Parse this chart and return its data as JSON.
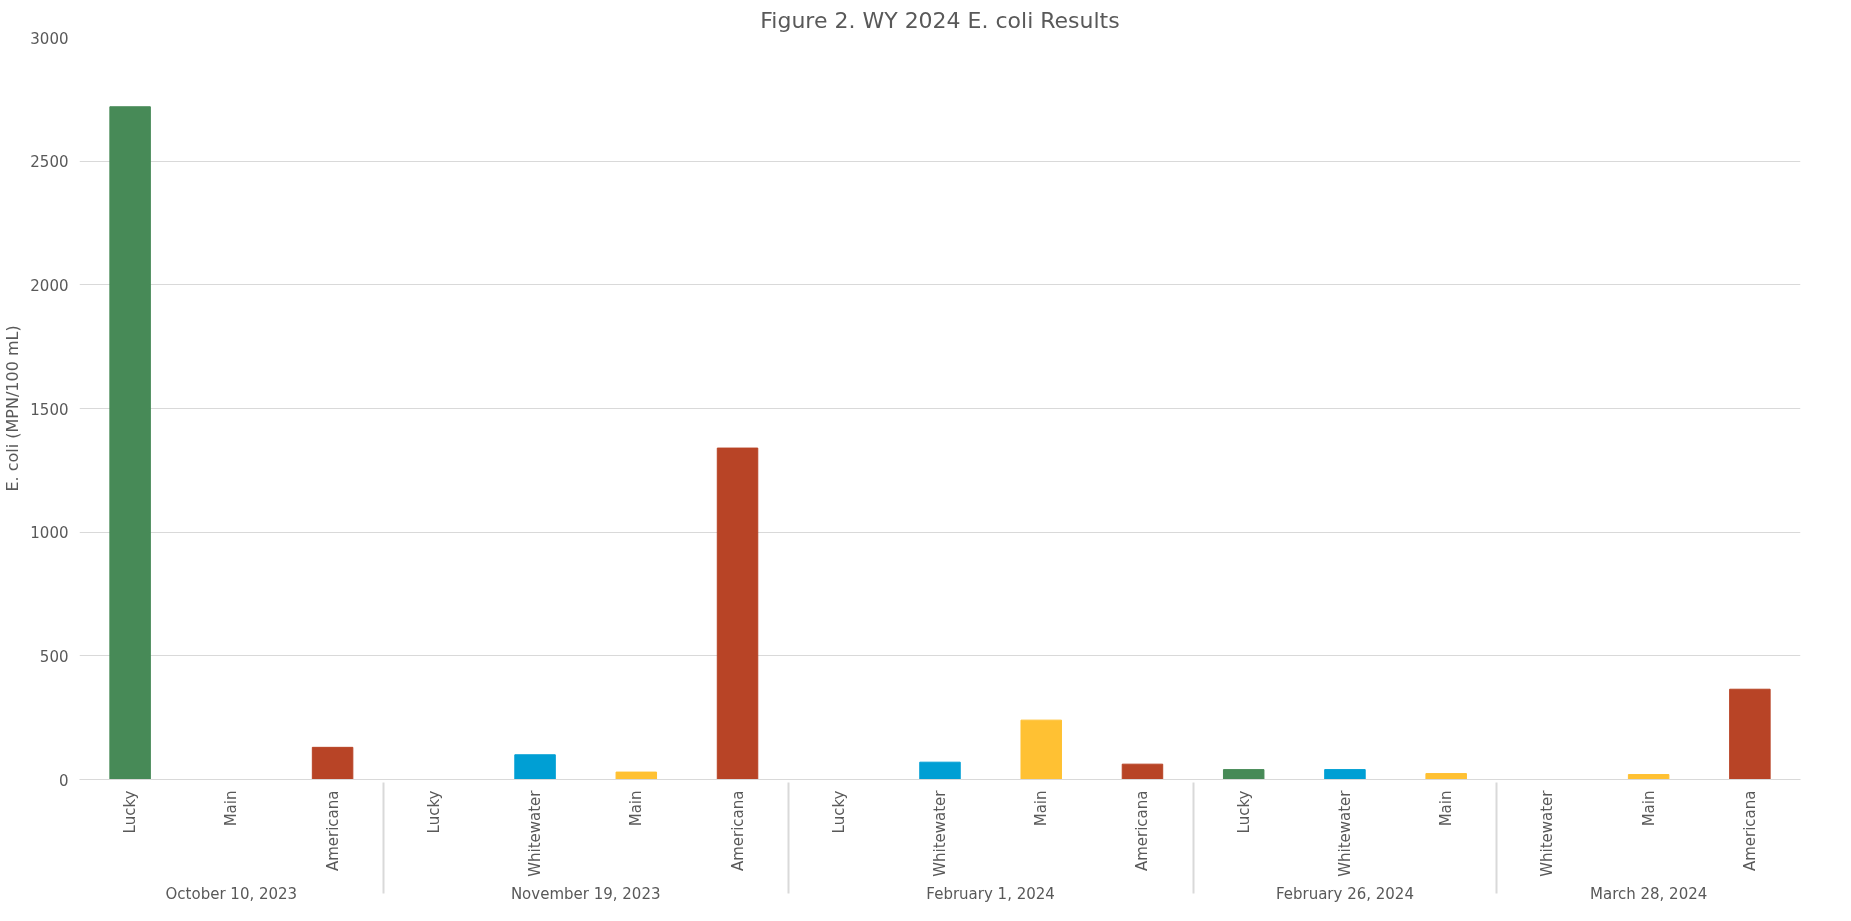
{
  "chart_data": {
    "type": "bar",
    "title": "Figure 2. WY 2024 E. coli Results",
    "ylabel": "E. coli (MPN/100 mL)",
    "categories": [
      "Lucky",
      "Main",
      "Americana",
      "Lucky",
      "Whitewater",
      "Main",
      "Americana",
      "Lucky",
      "Whitewater",
      "Main",
      "Americana",
      "Lucky",
      "Whitewater",
      "Main",
      "Whitewater",
      "Main",
      "Americana"
    ],
    "series": [
      {
        "values": [
          2720,
          0,
          130,
          null,
          null,
          null,
          null,
          null,
          null,
          null,
          null,
          null,
          null,
          null,
          null,
          null,
          null
        ],
        "colors": [
          "#478a57",
          "#ffc133",
          "#b84426",
          null,
          null,
          null,
          null,
          null,
          null,
          null,
          null,
          null,
          null,
          null,
          null,
          null,
          null
        ]
      },
      {
        "values": [
          null,
          null,
          null,
          0,
          100,
          30,
          1340,
          null,
          null,
          null,
          null,
          null,
          null,
          null,
          null,
          null,
          null
        ],
        "colors": [
          null,
          null,
          null,
          "#478a57",
          "#009fd4",
          "#ffc133",
          "#b84426",
          null,
          null,
          null,
          null,
          null,
          null,
          null,
          null,
          null,
          null
        ]
      },
      {
        "values": [
          null,
          null,
          null,
          null,
          null,
          null,
          null,
          0,
          70,
          240,
          62,
          null,
          null,
          null,
          null,
          null,
          null
        ],
        "colors": [
          null,
          null,
          null,
          null,
          null,
          null,
          null,
          "#478a57",
          "#009fd4",
          "#ffc133",
          "#b84426",
          null,
          null,
          null,
          null,
          null,
          null
        ]
      },
      {
        "values": [
          null,
          null,
          null,
          null,
          null,
          null,
          null,
          null,
          null,
          null,
          null,
          40,
          40,
          24,
          null,
          null,
          null
        ],
        "colors": [
          null,
          null,
          null,
          null,
          null,
          null,
          null,
          null,
          null,
          null,
          null,
          "#478a57",
          "#009fd4",
          "#ffc133",
          null,
          null,
          null
        ]
      },
      {
        "values": [
          null,
          null,
          null,
          null,
          null,
          null,
          null,
          null,
          null,
          null,
          null,
          null,
          null,
          null,
          0,
          20,
          365
        ],
        "colors": [
          null,
          null,
          null,
          null,
          null,
          null,
          null,
          null,
          null,
          null,
          null,
          null,
          null,
          null,
          "#009fd4",
          "#ffc133",
          "#b84426"
        ]
      }
    ],
    "annotations": [
      "October 10, 2023",
      "November 19, 2023",
      "February 1, 2024",
      "February 26, 2024",
      "March 28, 2024"
    ],
    "ylim": [
      0,
      3000
    ],
    "yticks": [
      0,
      500,
      1000,
      1500,
      2000,
      2500,
      3000
    ],
    "grid": "y"
  }
}
